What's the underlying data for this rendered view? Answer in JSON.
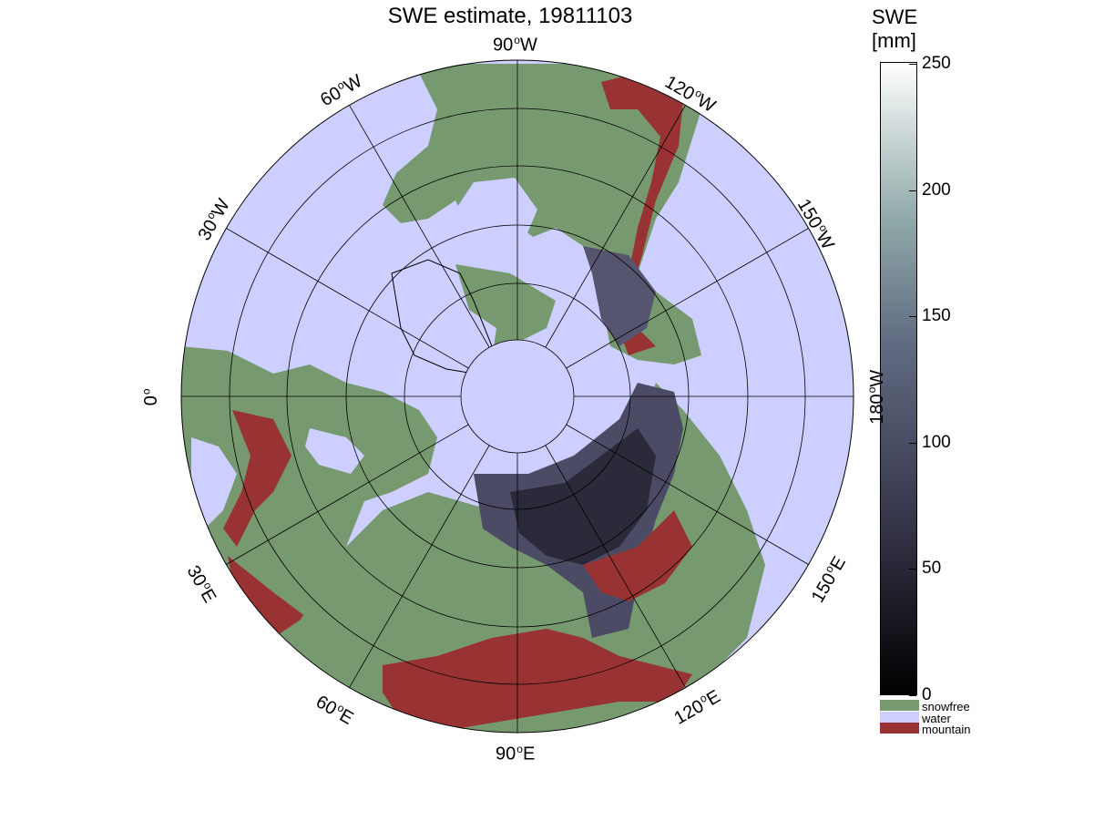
{
  "title": "SWE estimate, 19811103",
  "colorbar": {
    "title_line1": "SWE",
    "title_line2": "[mm]",
    "ticks": [
      "250",
      "200",
      "150",
      "100",
      "50",
      "0"
    ],
    "tick_values": [
      250,
      200,
      150,
      100,
      50,
      0
    ],
    "range": [
      0,
      250
    ]
  },
  "legend": {
    "snowfree": {
      "label": "snowfree",
      "color": "#77996f"
    },
    "water": {
      "label": "water",
      "color": "#cccfff"
    },
    "mountain": {
      "label": "mountain",
      "color": "#993333"
    }
  },
  "longitude_labels": {
    "lon_0": "0",
    "lon_30w": "30",
    "lon_60w": "60",
    "lon_90w": "90",
    "lon_120w": "120",
    "lon_150w": "150",
    "lon_180w": "180",
    "lon_150e": "150",
    "lon_120e": "120",
    "lon_90e": "90",
    "lon_60e": "60",
    "lon_30e": "30",
    "suffix_w": "W",
    "suffix_e": "E"
  },
  "colors": {
    "water": "#cccfff",
    "land": "#77996f",
    "mountain": "#993333",
    "snow_low": "#1f1d29",
    "snow_mid": "#4b4b66",
    "snow_high": "#ffffff"
  }
}
